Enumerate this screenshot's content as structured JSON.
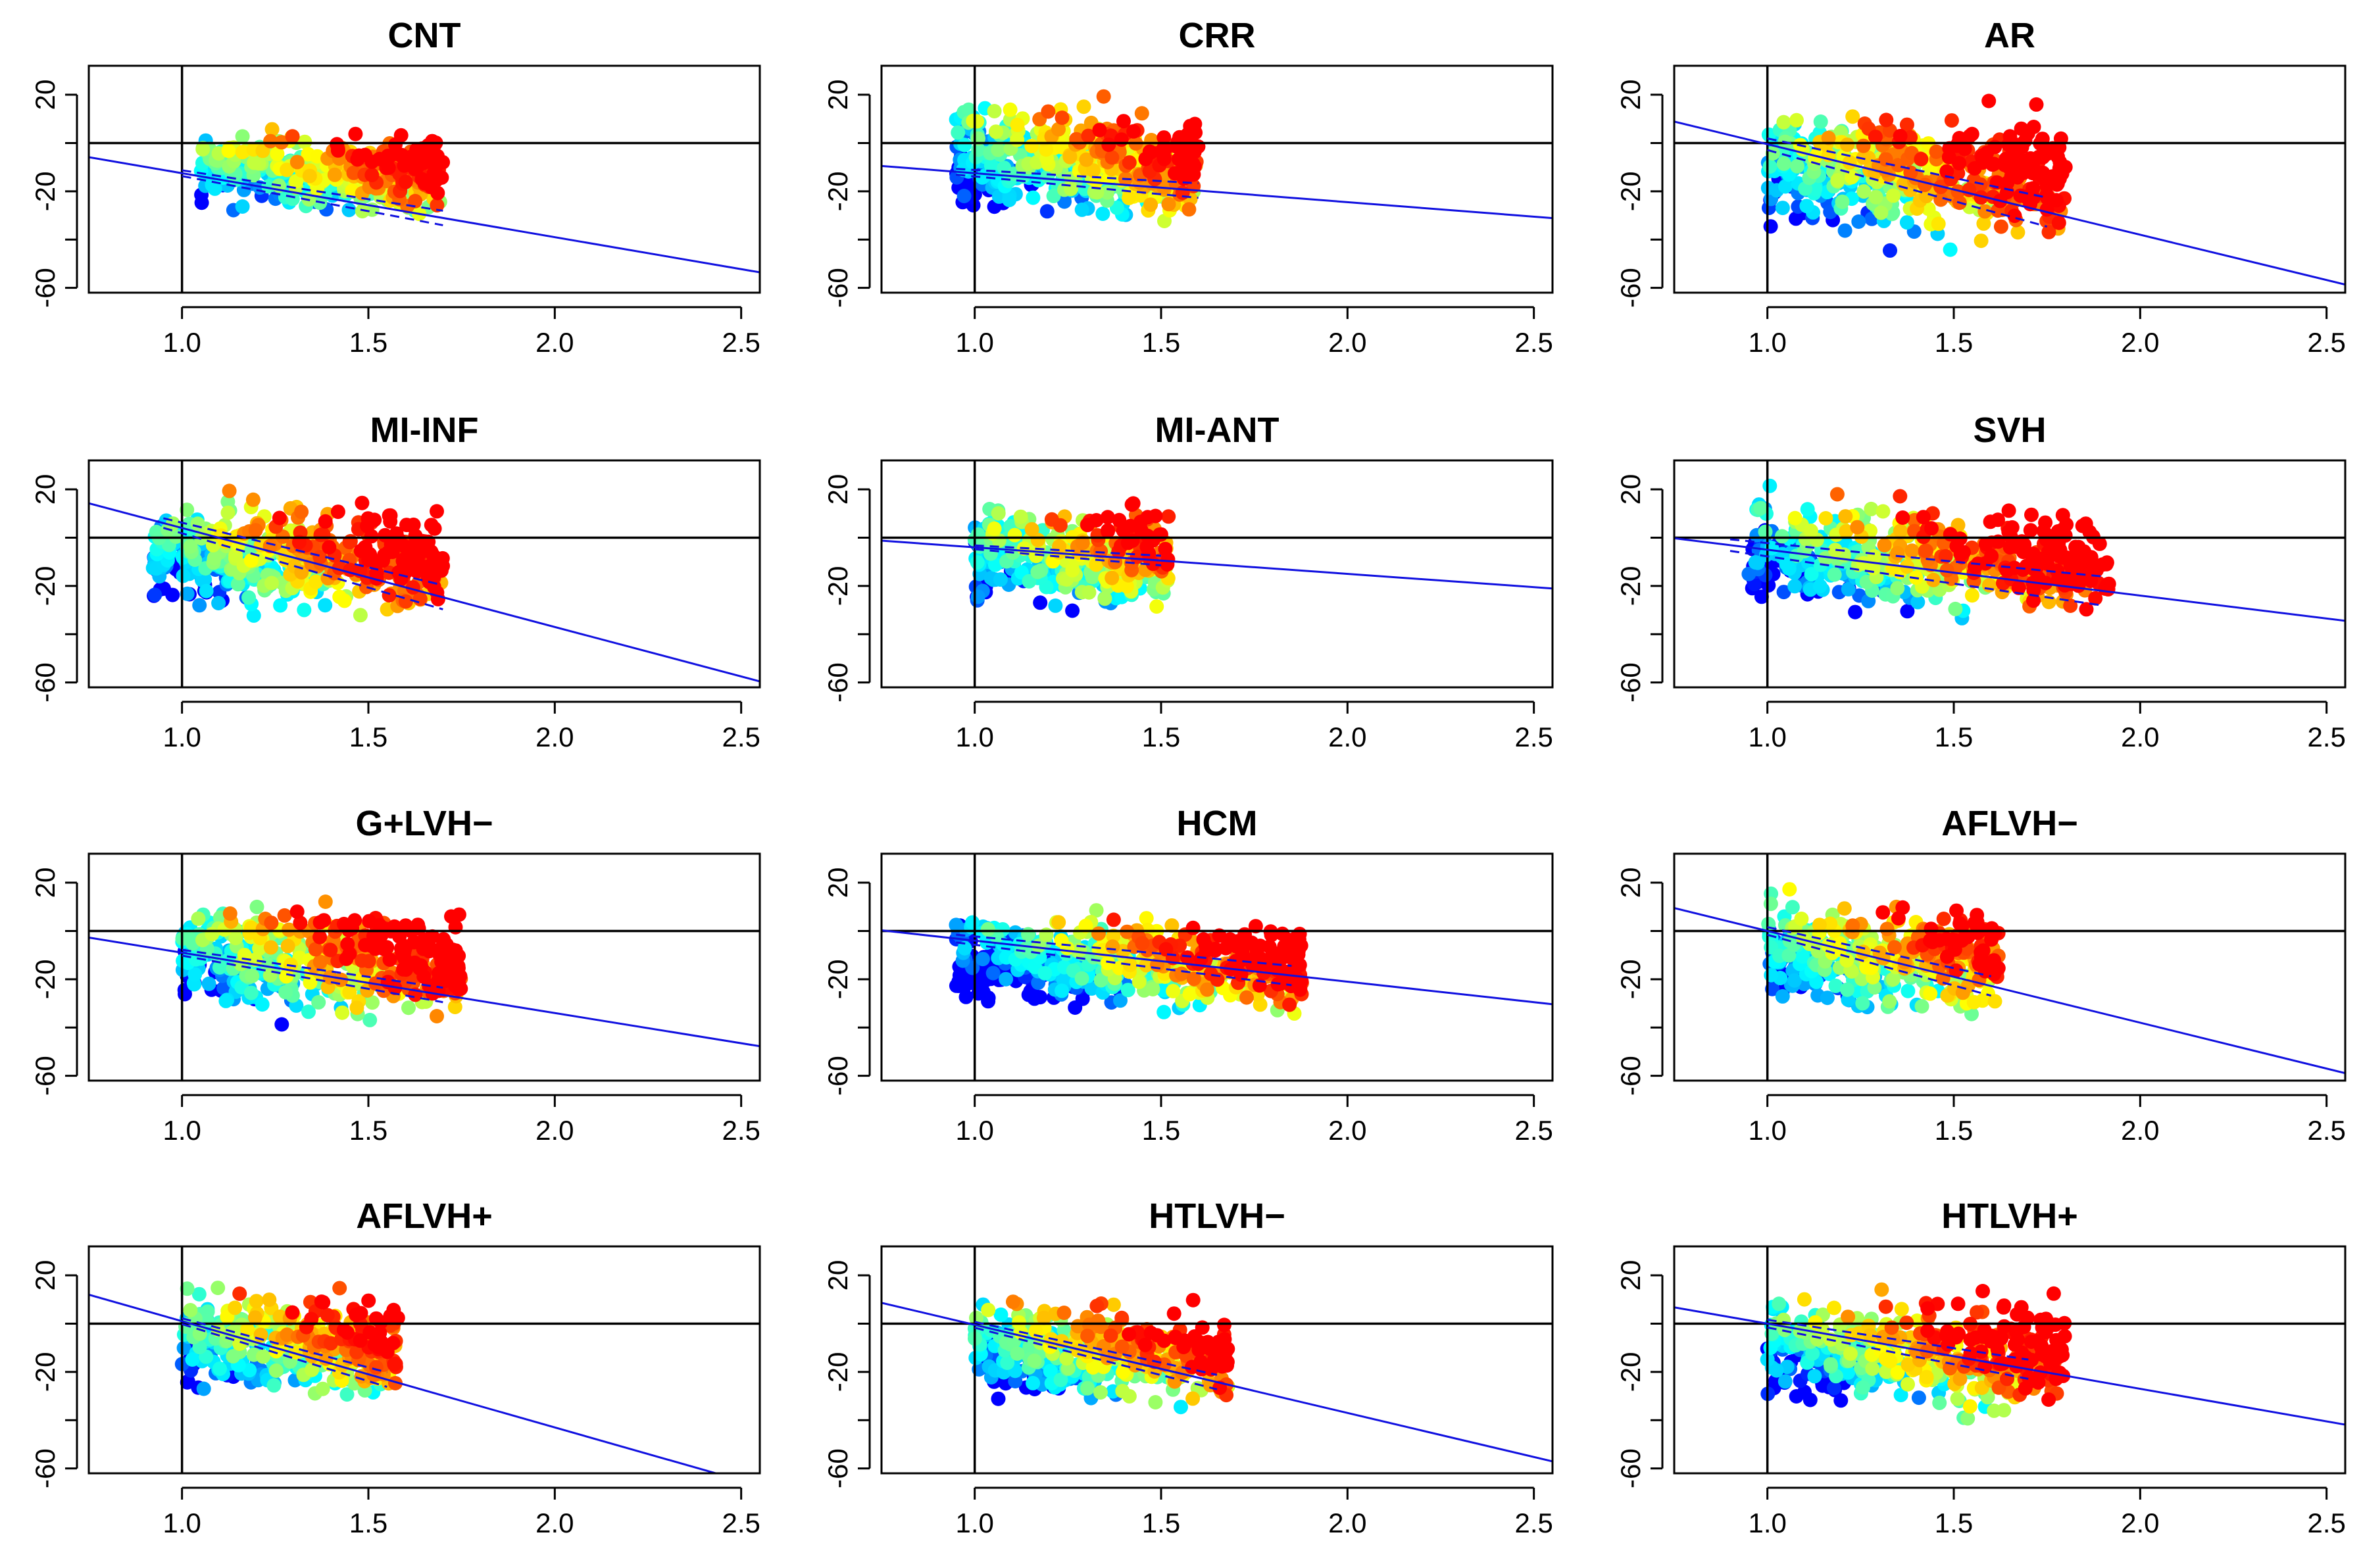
{
  "figure": {
    "title": ""
  },
  "colors": {
    "frame": "#000000",
    "fit_line": "#1010e0",
    "reference_line": "#000000",
    "gradient": [
      "#0000ff",
      "#00bfff",
      "#00ffff",
      "#80ff80",
      "#ffff00",
      "#ff8000",
      "#ff0000"
    ]
  },
  "chart_data": [
    {
      "type": "scatter",
      "title": "CNT",
      "xlim": [
        0.75,
        2.55
      ],
      "ylim": [
        -62,
        32
      ],
      "xticks": [
        "1.0",
        "1.5",
        "2.0",
        "2.5"
      ],
      "yticks": [
        "20",
        "-20",
        "-60"
      ],
      "hline": 0,
      "vline": 1.0,
      "fit": {
        "intercept": 14.0,
        "slope": -26.5
      },
      "ci": {
        "x": [
          1.0,
          1.7
        ],
        "half_width": 3
      },
      "cloud": {
        "x_range": [
          1.05,
          1.7
        ],
        "x_center": 1.35,
        "y_center": -12,
        "y_spread": 16,
        "n": 420,
        "palette": "mixed"
      }
    },
    {
      "type": "scatter",
      "title": "CRR",
      "xlim": [
        0.75,
        2.55
      ],
      "ylim": [
        -62,
        32
      ],
      "xticks": [
        "1.0",
        "1.5",
        "2.0",
        "2.5"
      ],
      "yticks": [
        "20",
        "-20",
        "-60"
      ],
      "hline": 0,
      "vline": 1.0,
      "fit": {
        "intercept": -0.5,
        "slope": -12.0
      },
      "ci": {
        "x": [
          0.95,
          1.6
        ],
        "half_width": 3
      },
      "cloud": {
        "x_range": [
          0.95,
          1.6
        ],
        "x_center": 1.3,
        "y_center": -8,
        "y_spread": 22,
        "n": 520,
        "palette": "mixed"
      }
    },
    {
      "type": "scatter",
      "title": "AR",
      "xlim": [
        0.75,
        2.55
      ],
      "ylim": [
        -62,
        32
      ],
      "xticks": [
        "1.0",
        "1.5",
        "2.0",
        "2.5"
      ],
      "yticks": [
        "20",
        "-20",
        "-60"
      ],
      "hline": 0,
      "vline": 1.0,
      "fit": {
        "intercept": 37.0,
        "slope": -37.5
      },
      "ci": {
        "x": [
          1.0,
          1.75
        ],
        "half_width": 6
      },
      "cloud": {
        "x_range": [
          1.0,
          1.8
        ],
        "x_center": 1.3,
        "y_center": -12,
        "y_spread": 24,
        "n": 520,
        "palette": "mixed"
      }
    },
    {
      "type": "scatter",
      "title": "MI-INF",
      "xlim": [
        0.75,
        2.55
      ],
      "ylim": [
        -62,
        32
      ],
      "xticks": [
        "1.0",
        "1.5",
        "2.0",
        "2.5"
      ],
      "yticks": [
        "20",
        "-20",
        "-60"
      ],
      "hline": 0,
      "vline": 1.0,
      "fit": {
        "intercept": 45.0,
        "slope": -41.0
      },
      "ci": {
        "x": [
          0.95,
          1.7
        ],
        "half_width": 5
      },
      "cloud": {
        "x_range": [
          0.92,
          1.7
        ],
        "x_center": 1.25,
        "y_center": -8,
        "y_spread": 22,
        "n": 520,
        "palette": "mixed"
      }
    },
    {
      "type": "scatter",
      "title": "MI-ANT",
      "xlim": [
        0.75,
        2.55
      ],
      "ylim": [
        -62,
        32
      ],
      "xticks": [
        "1.0",
        "1.5",
        "2.0",
        "2.5"
      ],
      "yticks": [
        "20",
        "-20",
        "-60"
      ],
      "hline": 0,
      "vline": 1.0,
      "fit": {
        "intercept": 7.0,
        "slope": -11.0
      },
      "ci": {
        "x": [
          1.0,
          1.5
        ],
        "half_width": 2
      },
      "cloud": {
        "x_range": [
          1.0,
          1.52
        ],
        "x_center": 1.28,
        "y_center": -8,
        "y_spread": 20,
        "n": 380,
        "palette": "mixed"
      }
    },
    {
      "type": "scatter",
      "title": "SVH",
      "xlim": [
        0.75,
        2.55
      ],
      "ylim": [
        -62,
        32
      ],
      "xticks": [
        "1.0",
        "1.5",
        "2.0",
        "2.5"
      ],
      "yticks": [
        "20",
        "-20",
        "-60"
      ],
      "hline": 0,
      "vline": 1.0,
      "fit": {
        "intercept": 14.0,
        "slope": -19.0
      },
      "ci": {
        "x": [
          0.9,
          1.9
        ],
        "half_width": 6
      },
      "cloud": {
        "x_range": [
          0.95,
          1.92
        ],
        "x_center": 1.35,
        "y_center": -8,
        "y_spread": 22,
        "n": 560,
        "palette": "mixed"
      }
    },
    {
      "type": "scatter",
      "title": "G+LVH−",
      "xlim": [
        0.75,
        2.55
      ],
      "ylim": [
        -62,
        32
      ],
      "xticks": [
        "1.0",
        "1.5",
        "2.0",
        "2.5"
      ],
      "yticks": [
        "20",
        "-20",
        "-60"
      ],
      "hline": 0,
      "vline": 1.0,
      "fit": {
        "intercept": 16.0,
        "slope": -25.0
      },
      "ci": {
        "x": [
          1.0,
          1.7
        ],
        "half_width": 3
      },
      "cloud": {
        "x_range": [
          1.0,
          1.75
        ],
        "x_center": 1.3,
        "y_center": -12,
        "y_spread": 22,
        "n": 520,
        "palette": "mixed"
      }
    },
    {
      "type": "scatter",
      "title": "HCM",
      "xlim": [
        0.75,
        2.55
      ],
      "ylim": [
        -62,
        32
      ],
      "xticks": [
        "1.0",
        "1.5",
        "2.0",
        "2.5"
      ],
      "yticks": [
        "20",
        "-20",
        "-60"
      ],
      "hline": 0,
      "vline": 1.0,
      "fit": {
        "intercept": 13.0,
        "slope": -17.0
      },
      "ci": {
        "x": [
          0.95,
          1.85
        ],
        "half_width": 4
      },
      "cloud": {
        "x_range": [
          0.95,
          1.88
        ],
        "x_center": 1.45,
        "y_center": -14,
        "y_spread": 18,
        "n": 560,
        "palette": "mixed"
      }
    },
    {
      "type": "scatter",
      "title": "AFLVH−",
      "xlim": [
        0.75,
        2.55
      ],
      "ylim": [
        -62,
        32
      ],
      "xticks": [
        "1.0",
        "1.5",
        "2.0",
        "2.5"
      ],
      "yticks": [
        "20",
        "-20",
        "-60"
      ],
      "hline": 0,
      "vline": 1.0,
      "fit": {
        "intercept": 38.0,
        "slope": -38.0
      },
      "ci": {
        "x": [
          1.0,
          1.6
        ],
        "half_width": 4
      },
      "cloud": {
        "x_range": [
          1.0,
          1.62
        ],
        "x_center": 1.3,
        "y_center": -10,
        "y_spread": 22,
        "n": 440,
        "palette": "mixed"
      }
    },
    {
      "type": "scatter",
      "title": "AFLVH+",
      "xlim": [
        0.75,
        2.55
      ],
      "ylim": [
        -62,
        32
      ],
      "xticks": [
        "1.0",
        "1.5",
        "2.0",
        "2.5"
      ],
      "yticks": [
        "20",
        "-20",
        "-60"
      ],
      "hline": 0,
      "vline": 1.0,
      "fit": {
        "intercept": 45.0,
        "slope": -44.0
      },
      "ci": {
        "x": [
          1.0,
          1.55
        ],
        "half_width": 3
      },
      "cloud": {
        "x_range": [
          1.0,
          1.58
        ],
        "x_center": 1.28,
        "y_center": -8,
        "y_spread": 20,
        "n": 400,
        "palette": "mixed"
      }
    },
    {
      "type": "scatter",
      "title": "HTLVH−",
      "xlim": [
        0.75,
        2.55
      ],
      "ylim": [
        -62,
        32
      ],
      "xticks": [
        "1.0",
        "1.5",
        "2.0",
        "2.5"
      ],
      "yticks": [
        "20",
        "-20",
        "-60"
      ],
      "hline": 0,
      "vline": 1.0,
      "fit": {
        "intercept": 36.0,
        "slope": -36.5
      },
      "ci": {
        "x": [
          1.0,
          1.65
        ],
        "half_width": 3
      },
      "cloud": {
        "x_range": [
          1.0,
          1.68
        ],
        "x_center": 1.32,
        "y_center": -12,
        "y_spread": 20,
        "n": 440,
        "palette": "mixed"
      }
    },
    {
      "type": "scatter",
      "title": "HTLVH+",
      "xlim": [
        0.75,
        2.55
      ],
      "ylim": [
        -62,
        32
      ],
      "xticks": [
        "1.0",
        "1.5",
        "2.0",
        "2.5"
      ],
      "yticks": [
        "20",
        "-20",
        "-60"
      ],
      "hline": 0,
      "vline": 1.0,
      "fit": {
        "intercept": 27.0,
        "slope": -27.0
      },
      "ci": {
        "x": [
          1.0,
          1.7
        ],
        "half_width": 4
      },
      "cloud": {
        "x_range": [
          1.0,
          1.8
        ],
        "x_center": 1.35,
        "y_center": -12,
        "y_spread": 22,
        "n": 520,
        "palette": "mixed"
      }
    }
  ]
}
